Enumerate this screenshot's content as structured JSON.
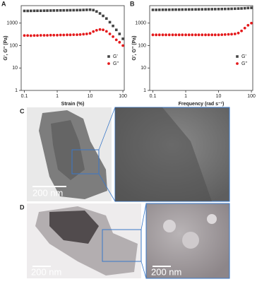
{
  "chart_data": [
    {
      "type": "scatter",
      "panel_label": "A",
      "x_label": "Strain (%)",
      "y_label": "G', G'' (Pa)",
      "xscale": "log",
      "yscale": "log",
      "xlim": [
        0.08,
        110
      ],
      "ylim": [
        1,
        6000
      ],
      "xticks": [
        0.1,
        1,
        10,
        100
      ],
      "yticks": [
        1,
        10,
        100,
        1000
      ],
      "legend": "lower right",
      "x": [
        0.1,
        0.126,
        0.158,
        0.2,
        0.25,
        0.316,
        0.4,
        0.5,
        0.63,
        0.79,
        1,
        1.26,
        1.58,
        2,
        2.5,
        3.16,
        4,
        5,
        6.3,
        7.9,
        10,
        12.6,
        15.8,
        20,
        25,
        31.6,
        40,
        50,
        63,
        79,
        100
      ],
      "series": [
        {
          "name": "G'",
          "color": "#444444",
          "marker": "square",
          "values": [
            3500,
            3500,
            3520,
            3540,
            3550,
            3560,
            3580,
            3600,
            3620,
            3640,
            3660,
            3680,
            3700,
            3720,
            3740,
            3760,
            3780,
            3800,
            3850,
            3900,
            3950,
            3800,
            3300,
            2700,
            2100,
            1600,
            1100,
            750,
            500,
            330,
            200
          ]
        },
        {
          "name": "G''",
          "color": "#e41a1c",
          "marker": "circle",
          "values": [
            280,
            280,
            275,
            280,
            280,
            285,
            285,
            285,
            290,
            290,
            290,
            295,
            295,
            300,
            300,
            305,
            305,
            310,
            320,
            330,
            350,
            420,
            480,
            520,
            500,
            430,
            330,
            250,
            180,
            140,
            100
          ]
        }
      ]
    },
    {
      "type": "scatter",
      "panel_label": "B",
      "x_label": "Frequency (rad s⁻¹)",
      "y_label": "G', G'' (Pa)",
      "xscale": "log",
      "yscale": "log",
      "xlim": [
        0.08,
        110
      ],
      "ylim": [
        1,
        6000
      ],
      "xticks": [
        0.1,
        1,
        10,
        100
      ],
      "yticks": [
        1,
        10,
        100,
        1000
      ],
      "legend": "lower right",
      "x": [
        0.1,
        0.126,
        0.158,
        0.2,
        0.25,
        0.316,
        0.4,
        0.5,
        0.63,
        0.79,
        1,
        1.26,
        1.58,
        2,
        2.5,
        3.16,
        4,
        5,
        6.3,
        7.9,
        10,
        12.6,
        15.8,
        20,
        25,
        31.6,
        40,
        50,
        63,
        79,
        100
      ],
      "series": [
        {
          "name": "G'",
          "color": "#444444",
          "marker": "square",
          "values": [
            3900,
            3900,
            3920,
            3940,
            3950,
            3960,
            3980,
            4000,
            4000,
            4020,
            4040,
            4050,
            4060,
            4080,
            4100,
            4120,
            4140,
            4160,
            4180,
            4200,
            4220,
            4250,
            4280,
            4300,
            4350,
            4400,
            4450,
            4500,
            4600,
            4700,
            4800
          ]
        },
        {
          "name": "G''",
          "color": "#e41a1c",
          "marker": "circle",
          "values": [
            300,
            300,
            300,
            300,
            300,
            300,
            300,
            300,
            300,
            300,
            300,
            300,
            300,
            300,
            300,
            300,
            300,
            300,
            300,
            300,
            300,
            305,
            310,
            315,
            320,
            330,
            360,
            450,
            600,
            800,
            1000
          ]
        }
      ]
    }
  ],
  "images": [
    {
      "panel_label": "C",
      "scale_bar": "200 nm"
    },
    {
      "panel_label": "D",
      "scale_bars": [
        "200 nm",
        "200 nm"
      ]
    }
  ]
}
